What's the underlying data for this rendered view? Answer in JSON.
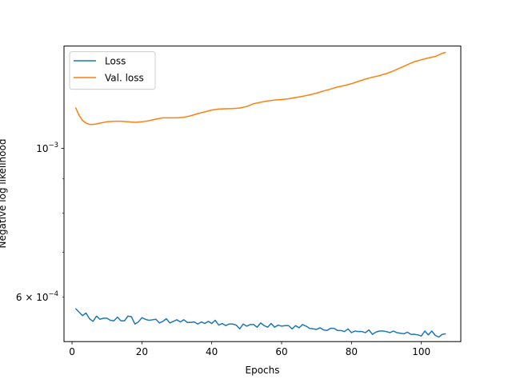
{
  "chart_data": {
    "type": "line",
    "title": "",
    "xlabel": "Epochs",
    "ylabel": "Negative log likelihood",
    "yscale": "log",
    "xlim": [
      -2.3,
      111.3
    ],
    "ylim": [
      0.000515,
      0.00142
    ],
    "xticks": [
      0,
      20,
      40,
      60,
      80,
      100
    ],
    "xtick_labels": [
      "0",
      "20",
      "40",
      "60",
      "80",
      "100"
    ],
    "yticks_major": [
      0.001
    ],
    "ytick_major_labels": [
      "10",
      "−3"
    ],
    "yticks_labeled_minor": [
      0.0006
    ],
    "ytick_minor_labels": [
      "6 × 10",
      "−4"
    ],
    "yticks_minor_unlabeled": [
      0.0007,
      0.0008,
      0.0009
    ],
    "legend_position": "top-left",
    "series": [
      {
        "name": "Loss",
        "color": "#1f77b4",
        "x": [
          1,
          2,
          3,
          4,
          5,
          6,
          7,
          8,
          9,
          10,
          11,
          12,
          13,
          14,
          15,
          16,
          17,
          18,
          19,
          20,
          21,
          22,
          23,
          24,
          25,
          26,
          27,
          28,
          29,
          30,
          31,
          32,
          33,
          34,
          35,
          36,
          37,
          38,
          39,
          40,
          41,
          42,
          43,
          44,
          45,
          46,
          47,
          48,
          49,
          50,
          51,
          52,
          53,
          54,
          55,
          56,
          57,
          58,
          59,
          60,
          61,
          62,
          63,
          64,
          65,
          66,
          67,
          68,
          69,
          70,
          71,
          72,
          73,
          74,
          75,
          76,
          77,
          78,
          79,
          80,
          81,
          82,
          83,
          84,
          85,
          86,
          87,
          88,
          89,
          90,
          91,
          92,
          93,
          94,
          95,
          96,
          97,
          98,
          99,
          100,
          101,
          102,
          103,
          104,
          105,
          106,
          107
        ],
        "values": [
          0.000577,
          0.00057,
          0.000563,
          0.000568,
          0.000557,
          0.000552,
          0.000562,
          0.000556,
          0.000558,
          0.000558,
          0.000554,
          0.000553,
          0.00056,
          0.000553,
          0.000553,
          0.000562,
          0.000561,
          0.000547,
          0.000551,
          0.000559,
          0.000556,
          0.000554,
          0.000555,
          0.000556,
          0.000549,
          0.000552,
          0.000557,
          0.000549,
          0.000552,
          0.000555,
          0.000551,
          0.000555,
          0.00055,
          0.00055,
          0.000551,
          0.000547,
          0.000551,
          0.000548,
          0.000552,
          0.000548,
          0.000554,
          0.000545,
          0.000548,
          0.000544,
          0.000547,
          0.000547,
          0.000545,
          0.000538,
          0.000547,
          0.000543,
          0.000546,
          0.000546,
          0.000541,
          0.000549,
          0.000544,
          0.000541,
          0.000548,
          0.000541,
          0.000545,
          0.000543,
          0.000544,
          0.000544,
          0.000538,
          0.000544,
          0.00054,
          0.000546,
          0.000543,
          0.000539,
          0.000538,
          0.000537,
          0.00054,
          0.000536,
          0.000535,
          0.000539,
          0.000539,
          0.000535,
          0.000535,
          0.000533,
          0.000538,
          0.000531,
          0.000534,
          0.000533,
          0.000533,
          0.000531,
          0.000536,
          0.000528,
          0.000532,
          0.000534,
          0.000534,
          0.000533,
          0.000531,
          0.000534,
          0.000531,
          0.00053,
          0.000529,
          0.000532,
          0.000528,
          0.000528,
          0.000527,
          0.000525,
          0.000534,
          0.000527,
          0.000534,
          0.000526,
          0.000523,
          0.000528,
          0.000529
        ]
      },
      {
        "name": "Val. loss",
        "color": "#ff7f0e",
        "x": [
          1,
          2,
          3,
          4,
          5,
          6,
          7,
          8,
          10,
          12,
          14,
          16,
          18,
          20,
          22,
          24,
          26,
          28,
          30,
          32,
          34,
          36,
          38,
          40,
          42,
          44,
          46,
          48,
          50,
          52,
          54,
          56,
          58,
          60,
          62,
          64,
          66,
          68,
          70,
          72,
          74,
          76,
          78,
          80,
          82,
          84,
          86,
          88,
          90,
          92,
          94,
          96,
          98,
          100,
          102,
          104,
          106,
          107
        ],
        "values": [
          0.00115,
          0.00112,
          0.0011,
          0.00109,
          0.001085,
          0.001085,
          0.001087,
          0.00109,
          0.001095,
          0.001097,
          0.001097,
          0.001095,
          0.001093,
          0.001095,
          0.001099,
          0.001105,
          0.00111,
          0.00111,
          0.00111,
          0.001112,
          0.001118,
          0.001126,
          0.001133,
          0.00114,
          0.001144,
          0.001145,
          0.001146,
          0.001148,
          0.001154,
          0.001165,
          0.001171,
          0.001176,
          0.00118,
          0.001182,
          0.001185,
          0.00119,
          0.001195,
          0.001201,
          0.001208,
          0.001217,
          0.001225,
          0.001234,
          0.00124,
          0.001248,
          0.001258,
          0.001268,
          0.001276,
          0.001283,
          0.001292,
          0.001304,
          0.001318,
          0.001332,
          0.001346,
          0.001355,
          0.001363,
          0.00137,
          0.001385,
          0.00139
        ]
      }
    ]
  }
}
